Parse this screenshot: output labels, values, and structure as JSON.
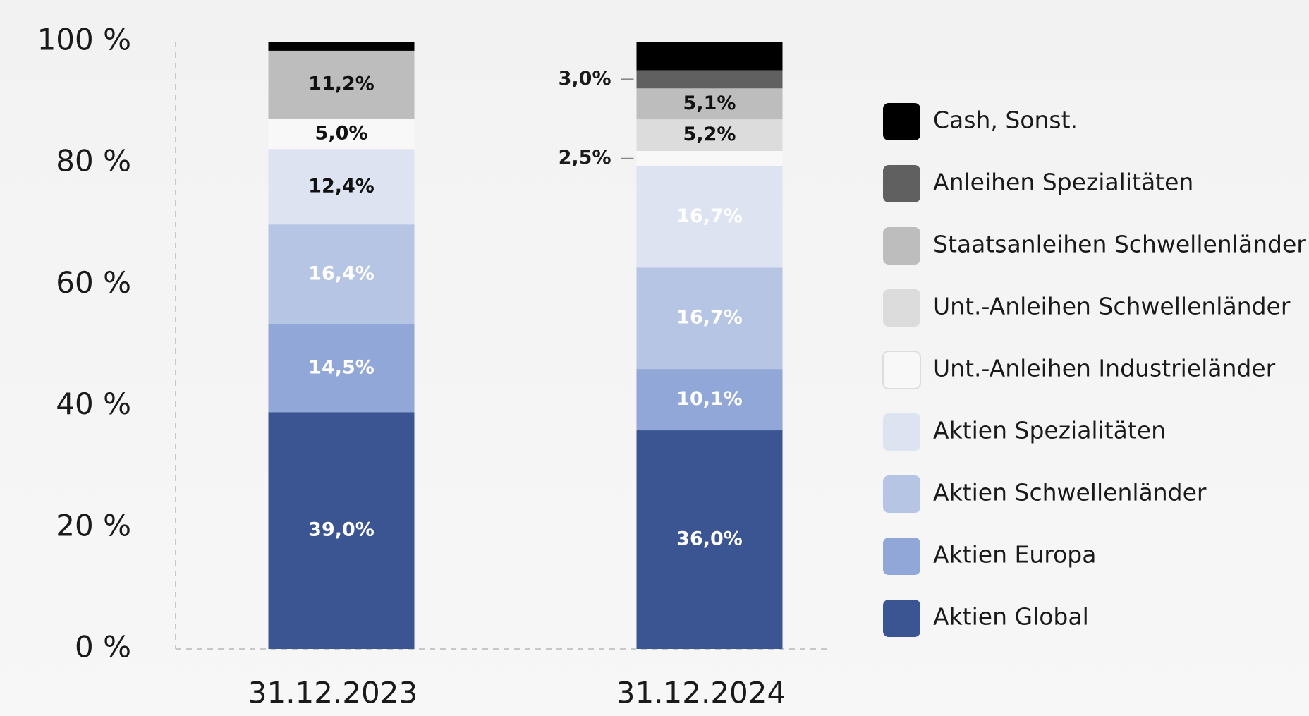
{
  "chart_data": {
    "type": "stacked_bar",
    "categories": [
      "31.12.2023",
      "31.12.2024"
    ],
    "ylim": [
      0,
      100
    ],
    "yticks": [
      {
        "value": 0,
        "label": "0 %"
      },
      {
        "value": 20,
        "label": "20 %"
      },
      {
        "value": 40,
        "label": "40 %"
      },
      {
        "value": 60,
        "label": "60 %"
      },
      {
        "value": 80,
        "label": "80 %"
      },
      {
        "value": 100,
        "label": "100 %"
      }
    ],
    "series": [
      {
        "name": "Aktien Global",
        "color": "#3a5592",
        "values": [
          39.0,
          36.0
        ],
        "value_labels": [
          "39,0%",
          "36,0%"
        ]
      },
      {
        "name": "Aktien Europa",
        "color": "#91a7d7",
        "values": [
          14.5,
          10.1
        ],
        "value_labels": [
          "14,5%",
          "10,1%"
        ]
      },
      {
        "name": "Aktien Schwellenländer",
        "color": "#b6c5e4",
        "values": [
          16.4,
          16.7
        ],
        "value_labels": [
          "16,4%",
          "16,7%"
        ]
      },
      {
        "name": "Aktien Spezialitäten",
        "color": "#dde3f1",
        "values": [
          12.4,
          16.7
        ],
        "value_labels": [
          "12,4%",
          "16,7%"
        ]
      },
      {
        "name": "Unt.-Anleihen Industrieländer",
        "color": "#f8f8f8",
        "values": [
          5.0,
          2.5
        ],
        "value_labels": [
          "5,0%",
          "2,5%"
        ]
      },
      {
        "name": "Unt.-Anleihen Schwellenländer",
        "color": "#dcdcdc",
        "values": [
          null,
          5.2
        ],
        "value_labels": [
          null,
          "5,2%"
        ]
      },
      {
        "name": "Staatsanleihen Schwellenländer",
        "color": "#bdbdbd",
        "values": [
          11.2,
          5.1
        ],
        "value_labels": [
          "11,2%",
          "5,1%"
        ]
      },
      {
        "name": "Anleihen Spezialitäten",
        "color": "#606060",
        "values": [
          null,
          3.0
        ],
        "value_labels": [
          null,
          "3,0%"
        ]
      },
      {
        "name": "Cash, Sonst.",
        "color": "#000000",
        "values": [
          1.5,
          4.7
        ],
        "value_labels": [
          null,
          null
        ]
      }
    ]
  }
}
